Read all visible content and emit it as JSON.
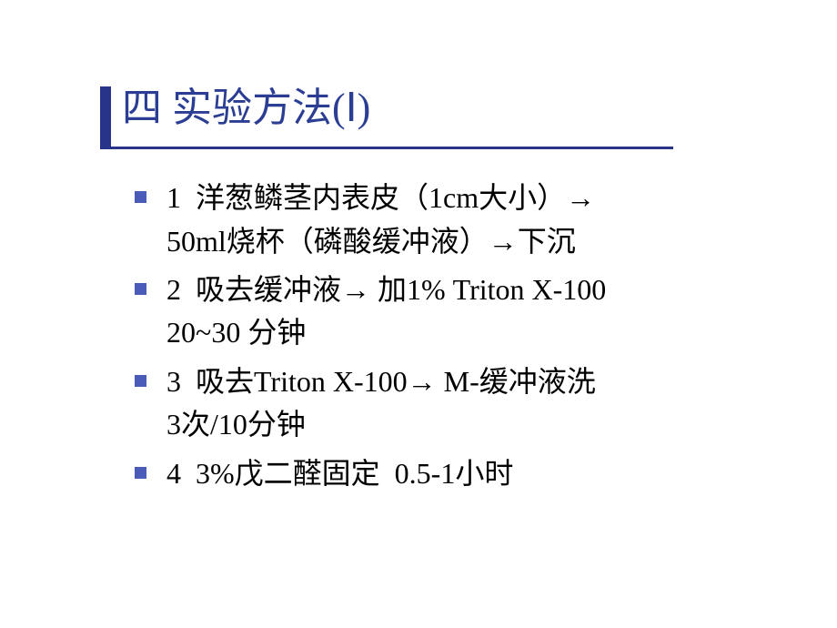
{
  "slide": {
    "title": "四  实验方法(Ⅰ)",
    "title_color": "#2c3e94",
    "title_fontsize": 44,
    "border_left_color": "#28348a",
    "border_bottom_color": "#28348a",
    "bullet_color": "#4a5bb8",
    "text_color": "#000000",
    "background_color": "#ffffff",
    "body_fontsize": 32,
    "items": [
      {
        "text": "1  洋葱鳞茎内表皮（1cm大小）→\n50ml烧杯（磷酸缓冲液）→下沉"
      },
      {
        "text": "2  吸去缓冲液→ 加1% Triton X-100\n20~30 分钟"
      },
      {
        "text": "3  吸去Triton X-100→ M-缓冲液洗\n3次/10分钟"
      },
      {
        "text": "4  3%戊二醛固定  0.5-1小时"
      }
    ]
  }
}
